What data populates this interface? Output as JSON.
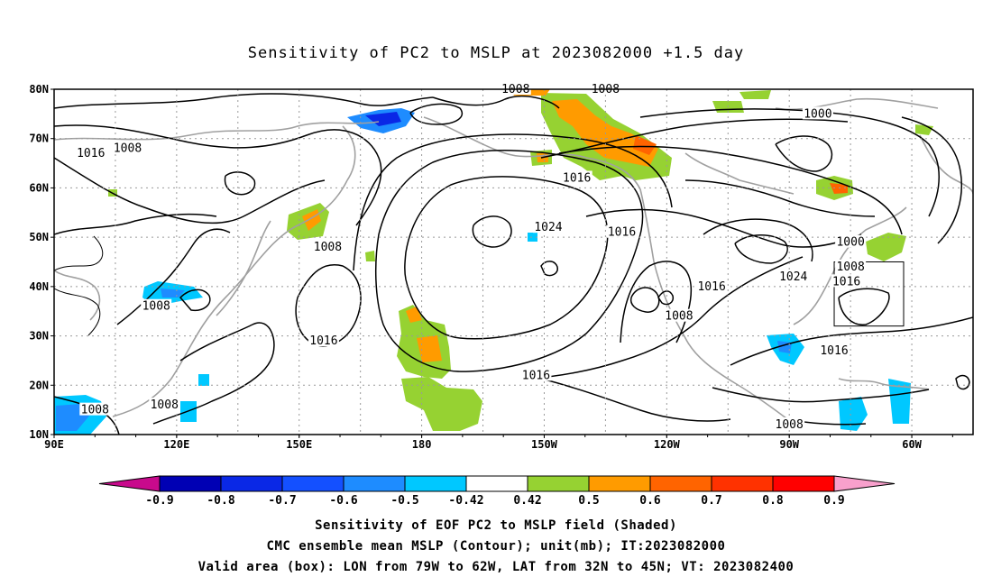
{
  "title": "Sensitivity of PC2 to MSLP at 2023082000 +1.5 day",
  "map": {
    "lat_labels": [
      "80N",
      "70N",
      "60N",
      "50N",
      "40N",
      "30N",
      "20N",
      "10N"
    ],
    "lon_labels": [
      "90E",
      "120E",
      "150E",
      "180",
      "150W",
      "120W",
      "90W",
      "60W"
    ],
    "contour_interval_mb": 8,
    "contour_labels": [
      {
        "text": "1008",
        "lon": -157,
        "lat": 80
      },
      {
        "text": "1008",
        "lon": -135,
        "lat": 80
      },
      {
        "text": "1000",
        "lon": -83,
        "lat": 75
      },
      {
        "text": "1016",
        "lon": 99,
        "lat": 67
      },
      {
        "text": "1008",
        "lon": 108,
        "lat": 68
      },
      {
        "text": "1016",
        "lon": -142,
        "lat": 62
      },
      {
        "text": "1024",
        "lon": -149,
        "lat": 52
      },
      {
        "text": "1016",
        "lon": -131,
        "lat": 51
      },
      {
        "text": "1008",
        "lon": 157,
        "lat": 48
      },
      {
        "text": "1000",
        "lon": -75,
        "lat": 49
      },
      {
        "text": "1008",
        "lon": -75,
        "lat": 44
      },
      {
        "text": "1024",
        "lon": -89,
        "lat": 42
      },
      {
        "text": "1016",
        "lon": -76,
        "lat": 41
      },
      {
        "text": "1016",
        "lon": -109,
        "lat": 40
      },
      {
        "text": "1008",
        "lon": 115,
        "lat": 36
      },
      {
        "text": "1008",
        "lon": -117,
        "lat": 34
      },
      {
        "text": "1016",
        "lon": 156,
        "lat": 29
      },
      {
        "text": "1016",
        "lon": -79,
        "lat": 27
      },
      {
        "text": "1016",
        "lon": -152,
        "lat": 22
      },
      {
        "text": "1008",
        "lon": 117,
        "lat": 16
      },
      {
        "text": "1008",
        "lon": 100,
        "lat": 15
      },
      {
        "text": "1008",
        "lon": -90,
        "lat": 12
      }
    ],
    "valid_box": {
      "lon_min": -79,
      "lon_max": -62,
      "lat_min": 32,
      "lat_max": 45
    }
  },
  "colorbar": {
    "labels": [
      "-0.9",
      "-0.8",
      "-0.7",
      "-0.6",
      "-0.5",
      "-0.42",
      "0.42",
      "0.5",
      "0.6",
      "0.7",
      "0.8",
      "0.9"
    ],
    "colors": [
      "#c80a8c",
      "#0000b4",
      "#0a28e6",
      "#1450ff",
      "#1e8cff",
      "#00c8ff",
      "#ffffff",
      "#96d232",
      "#ff9b00",
      "#ff6400",
      "#ff3200",
      "#ff0000",
      "#f8a0cc"
    ]
  },
  "footer": {
    "line1": "Sensitivity of EOF PC2 to MSLP field (Shaded)",
    "line2": "CMC ensemble mean MSLP (Contour); unit(mb); IT:2023082000",
    "line3": "Valid area (box): LON from 79W to 62W, LAT from 32N to 45N; VT: 2023082400"
  }
}
